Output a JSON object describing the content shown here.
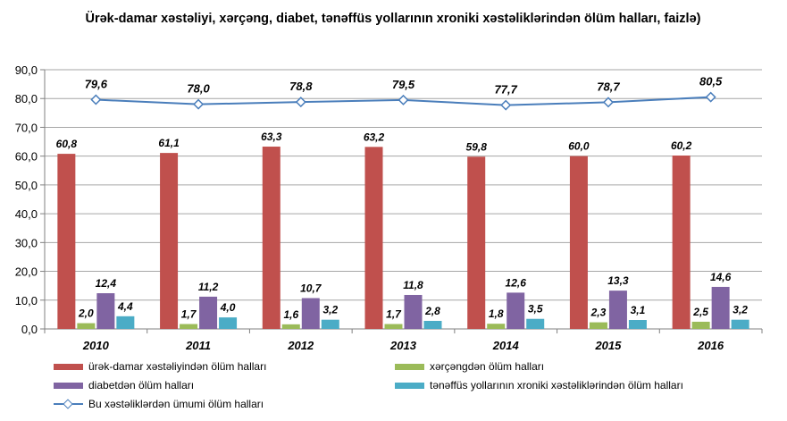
{
  "chart_data": {
    "type": "bar",
    "title": "Ürək-damar xəstəliyi, xərçəng, diabet, tənəffüs yollarının xroniki xəstəliklərindən ölüm halları, faizlə)",
    "categories": [
      "2010",
      "2011",
      "2012",
      "2013",
      "2014",
      "2015",
      "2016"
    ],
    "ylim": [
      0,
      90
    ],
    "y_ticks": [
      "0,0",
      "10,0",
      "20,0",
      "30,0",
      "40,0",
      "50,0",
      "60,0",
      "70,0",
      "80,0",
      "90,0"
    ],
    "grid": true,
    "legend_position": "bottom",
    "series": [
      {
        "name": "ürək-damar xəstəliyindən ölüm halları",
        "type": "bar",
        "color": "#c0504d",
        "values": [
          60.8,
          61.1,
          63.3,
          63.2,
          59.8,
          60.0,
          60.2
        ],
        "labels": [
          "60,8",
          "61,1",
          "63,3",
          "63,2",
          "59,8",
          "60,0",
          "60,2"
        ]
      },
      {
        "name": "xərçəngdən ölüm halları",
        "type": "bar",
        "color": "#9bbb59",
        "values": [
          2.0,
          1.7,
          1.6,
          1.7,
          1.8,
          2.3,
          2.5
        ],
        "labels": [
          "2,0",
          "1,7",
          "1,6",
          "1,7",
          "1,8",
          "2,3",
          "2,5"
        ]
      },
      {
        "name": "diabetdən ölüm halları",
        "type": "bar",
        "color": "#8064a2",
        "values": [
          12.4,
          11.2,
          10.7,
          11.8,
          12.6,
          13.3,
          14.6
        ],
        "labels": [
          "12,4",
          "11,2",
          "10,7",
          "11,8",
          "12,6",
          "13,3",
          "14,6"
        ]
      },
      {
        "name": "tənəffüs yollarının xroniki xəstəliklərindən ölüm halları",
        "type": "bar",
        "color": "#4bacc6",
        "values": [
          4.4,
          4.0,
          3.2,
          2.8,
          3.5,
          3.1,
          3.2
        ],
        "labels": [
          "4,4",
          "4,0",
          "3,2",
          "2,8",
          "3,5",
          "3,1",
          "3,2"
        ]
      },
      {
        "name": "Bu xəstəliklərdən ümumi ölüm halları",
        "type": "line",
        "color": "#4a7ebb",
        "values": [
          79.6,
          78.0,
          78.8,
          79.5,
          77.7,
          78.7,
          80.5
        ],
        "labels": [
          "79,6",
          "78,0",
          "78,8",
          "79,5",
          "77,7",
          "78,7",
          "80,5"
        ]
      }
    ]
  }
}
